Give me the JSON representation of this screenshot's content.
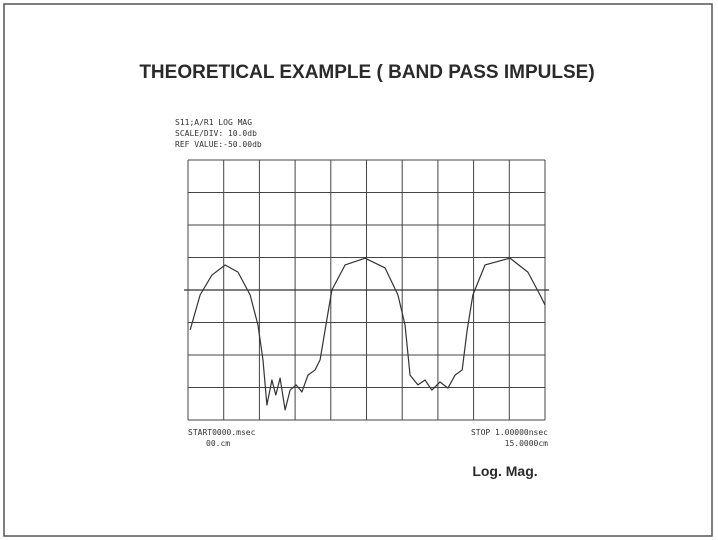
{
  "chart_data": {
    "type": "line",
    "title": "THEORETICAL EXAMPLE ( BAND PASS IMPULSE)",
    "header": [
      "S11;A/R1 LOG MAG",
      "SCALE/DIV: 10.0db",
      "REF VALUE:-50.00db"
    ],
    "start_label": [
      "START0000.msec",
      "00.cm"
    ],
    "stop_label": [
      "STOP 1.00000nsec",
      "15.0000cm"
    ],
    "annotation": "Log. Mag.",
    "xlim": [
      0,
      1
    ],
    "ylim": [
      -90,
      -10
    ],
    "xticks": [
      0,
      0.1,
      0.2,
      0.3,
      0.4,
      0.5,
      0.6,
      0.7,
      0.8,
      0.9,
      1
    ],
    "yticks": [
      -90,
      -80,
      -70,
      -60,
      -50,
      -40,
      -30,
      -20,
      -10
    ],
    "grid": true,
    "reference": -50,
    "series": [
      {
        "color": "#333333",
        "x": [
          0.006,
          0.034,
          0.067,
          0.104,
          0.14,
          0.174,
          0.196,
          0.21,
          0.221,
          0.235,
          0.246,
          0.258,
          0.272,
          0.286,
          0.303,
          0.319,
          0.336,
          0.356,
          0.37,
          0.384,
          0.403,
          0.44,
          0.496,
          0.552,
          0.588,
          0.608,
          0.622,
          0.644,
          0.664,
          0.683,
          0.706,
          0.728,
          0.748,
          0.768,
          0.782,
          0.798,
          0.832,
          0.902,
          0.952,
          0.986,
          1.0
        ],
        "values": [
          -62.3,
          -51.5,
          -45.4,
          -42.3,
          -44.5,
          -51.5,
          -60.8,
          -71.5,
          -85.4,
          -77.7,
          -82.3,
          -77.1,
          -86.9,
          -80.8,
          -79.2,
          -81.4,
          -76.2,
          -74.6,
          -71.5,
          -62.3,
          -50,
          -42.3,
          -40.2,
          -43.2,
          -51.5,
          -60.8,
          -76.2,
          -79.2,
          -77.7,
          -80.8,
          -78.3,
          -80.2,
          -76.2,
          -74.6,
          -62.3,
          -51.5,
          -42.3,
          -40.2,
          -44.5,
          -51.5,
          -54.6
        ]
      }
    ]
  }
}
